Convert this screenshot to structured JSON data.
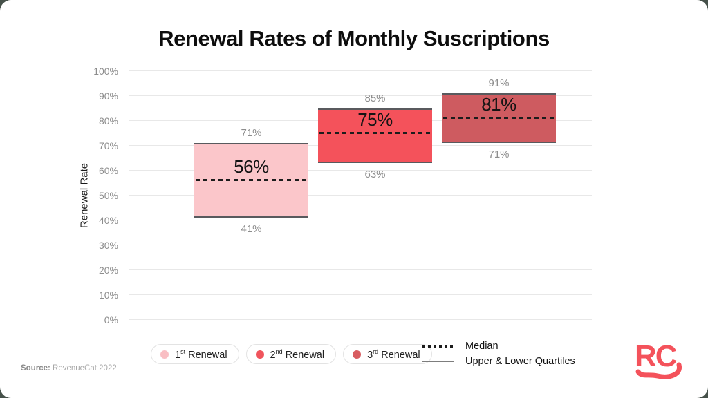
{
  "title": "Renewal Rates of Monthly Suscriptions",
  "chart_data": {
    "type": "bar",
    "subtype": "floating-quartile-bars",
    "title": "Renewal Rates of Monthly Suscriptions",
    "xlabel": "",
    "ylabel": "Renewal Rate",
    "ylim": [
      0,
      100
    ],
    "ytick_step": 10,
    "ytick_suffix": "%",
    "grid": "on",
    "legend_position": "bottom",
    "categories": [
      "1st Renewal",
      "2nd Renewal",
      "3rd Renewal"
    ],
    "series": [
      {
        "name": "1st Renewal",
        "name_num": "1",
        "name_sup": "st",
        "name_rest": "Renewal",
        "lower": 41,
        "median": 56,
        "upper": 71,
        "color": "#FBC6CA",
        "dot_color": "#F9BEC3"
      },
      {
        "name": "2nd Renewal",
        "name_num": "2",
        "name_sup": "nd",
        "name_rest": "Renewal",
        "lower": 63,
        "median": 75,
        "upper": 85,
        "color": "#F4525B",
        "dot_color": "#F0545C"
      },
      {
        "name": "3rd Renewal",
        "name_num": "3",
        "name_sup": "rd",
        "name_rest": "Renewal",
        "lower": 71,
        "median": 81,
        "upper": 91,
        "color": "#CE5B60",
        "dot_color": "#D85C60"
      }
    ]
  },
  "legend_lines": [
    {
      "style": "dashed",
      "label": "Median"
    },
    {
      "style": "solid",
      "label": "Upper & Lower Quartiles"
    }
  ],
  "source": {
    "prefix": "Source:",
    "text": " RevenueCat 2022"
  },
  "logo": {
    "text": "RC",
    "color": "#F4525B",
    "name": "revenuecat-logo"
  },
  "colors": {
    "bar_border": "#595a5e",
    "median_line": "#1c1c1c",
    "gridline": "#e8e8e8",
    "tick_text": "#8d8d8d",
    "page_background": "#46514a",
    "card_background": "#ffffff"
  }
}
